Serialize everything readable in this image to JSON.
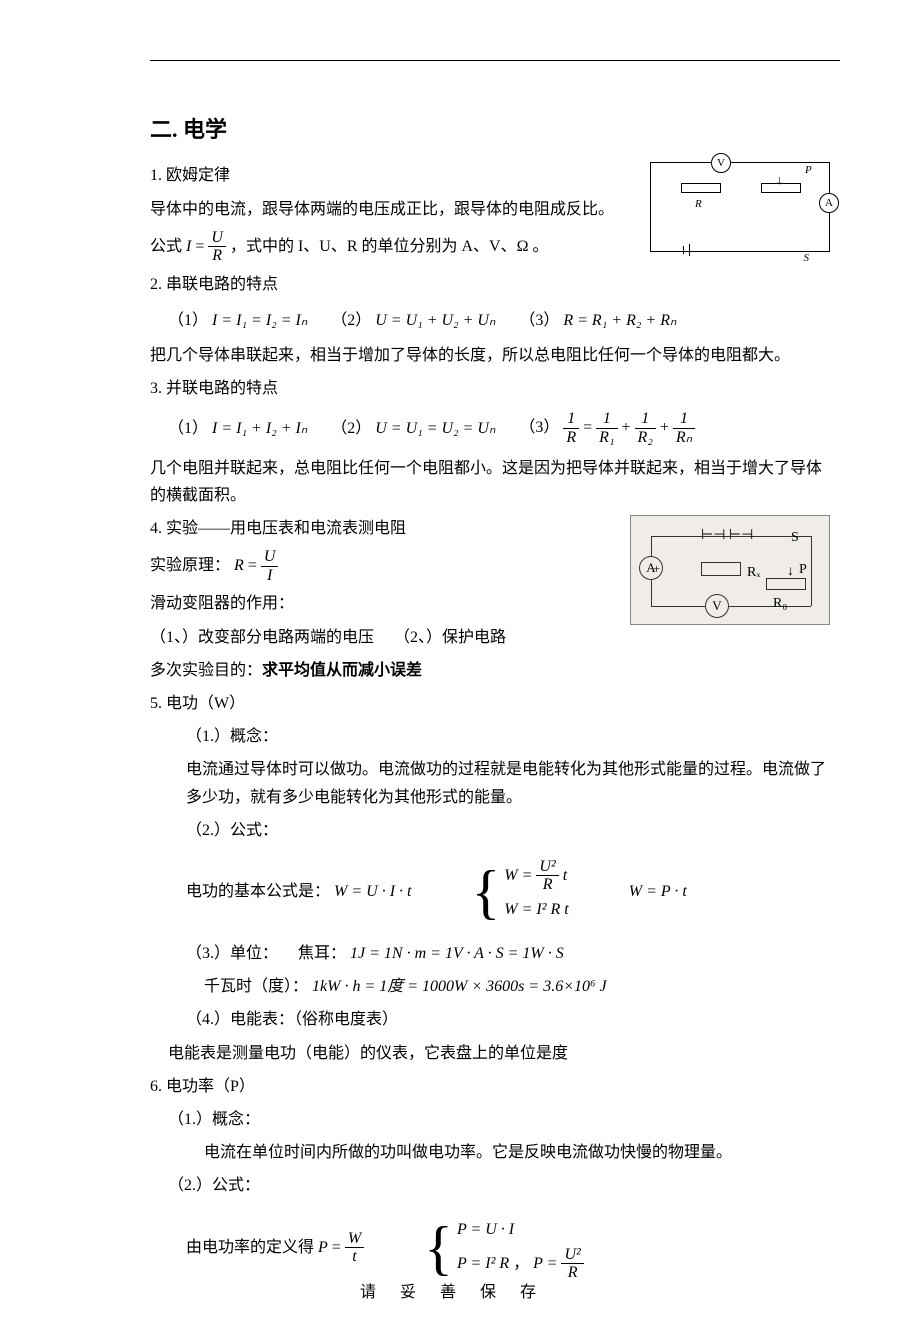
{
  "page": {
    "title": "二.  电学",
    "footer": "请妥善保存",
    "text_color": "#000000",
    "background_color": "#ffffff",
    "font_family": "SimSun",
    "base_fontsize": 16
  },
  "s1": {
    "heading": "1.  欧姆定律",
    "line1": "导体中的电流，跟导体两端的电压成正比，跟导体的电阻成反比。",
    "formula_label": "公式",
    "I": "I",
    "eq": "=",
    "U": "U",
    "R": "R",
    "line2": "，式中的 I、U、R 的单位分别为 A、V、Ω 。"
  },
  "circuit1": {
    "V": "V",
    "A": "A",
    "R": "R",
    "P": "P",
    "S": "S"
  },
  "s2": {
    "heading": "2.  串联电路的特点",
    "p1_label": "（1）",
    "f1": "I = I₁ = I₂ = Iₙ",
    "p2_label": "（2）",
    "f2": "U = U₁ + U₂ + Uₙ",
    "p3_label": "（3）",
    "f3": "R = R₁ + R₂ + Rₙ",
    "desc": "把几个导体串联起来，相当于增加了导体的长度，所以总电阻比任何一个导体的电阻都大。"
  },
  "s3": {
    "heading": "3.  并联电路的特点",
    "p1_label": "（1）",
    "f1": "I = I₁ + I₂ + Iₙ",
    "p2_label": "（2）",
    "f2": "U = U₁ = U₂ = Uₙ",
    "p3_label": "（3）",
    "one": "1",
    "R": "R",
    "R1": "R₁",
    "R2": "R₂",
    "Rn": "Rₙ",
    "desc": "几个电阻并联起来，总电阻比任何一个电阻都小。这是因为把导体并联起来，相当于增大了导体的横截面积。"
  },
  "s4": {
    "heading": "4.  实验——用电压表和电流表测电阻",
    "principle_label": "实验原理：",
    "R": "R",
    "eq": "=",
    "U": "U",
    "I": "I",
    "rheo_heading": "滑动变阻器的作用：",
    "rheo_1": "（1、）改变部分电路两端的电压",
    "rheo_2": "（2、）保护电路",
    "multi_label": "多次实验目的：",
    "multi_bold": "求平均值从而减小误差"
  },
  "circuit2": {
    "A": "A",
    "V": "V",
    "Rx": "Rₓ",
    "R0": "R₀",
    "P": "P",
    "S": "S",
    "plus": "+"
  },
  "s5": {
    "heading": "5. 电功（W）",
    "c1_label": "（1.）概念：",
    "c1_text": "电流通过导体时可以做功。电流做功的过程就是电能转化为其他形式能量的过程。电流做了多少功，就有多少电能转化为其他形式的能量。",
    "c2_label": "（2.）公式：",
    "formula_label": "电功的基本公式是：",
    "f_main": "W = U · I · t",
    "br1_l": "W =",
    "br1_num": "U²",
    "br1_den": "R",
    "br1_t": "t",
    "br2": "W = I² R t",
    "f_right": "W = P · t",
    "c3_label": "（3.）单位：",
    "unit_joule_label": "焦耳：",
    "unit_joule": "1J = 1N · m = 1V · A · S = 1W · S",
    "unit_kwh_label": "千瓦时（度）：",
    "unit_kwh": "1kW · h = 1度 = 1000W × 3600s = 3.6×10⁶ J",
    "c4_label": "（4.）电能表：（俗称电度表）",
    "c4_text": "电能表是测量电功（电能）的仪表，它表盘上的单位是度"
  },
  "s6": {
    "heading": "6. 电功率（P）",
    "c1_label": "（1.）概念：",
    "c1_text": "电流在单位时间内所做的功叫做电功率。它是反映电流做功快慢的物理量。",
    "c2_label": "（2.）公式：",
    "formula_label": "由电功率的定义得",
    "P": "P",
    "eq": "=",
    "W": "W",
    "t": "t",
    "br1": "P = U · I",
    "br2_a": "P = I² R",
    "br2_sep": "，",
    "br2_b_l": "P =",
    "br2_b_num": "U²",
    "br2_b_den": "R"
  }
}
